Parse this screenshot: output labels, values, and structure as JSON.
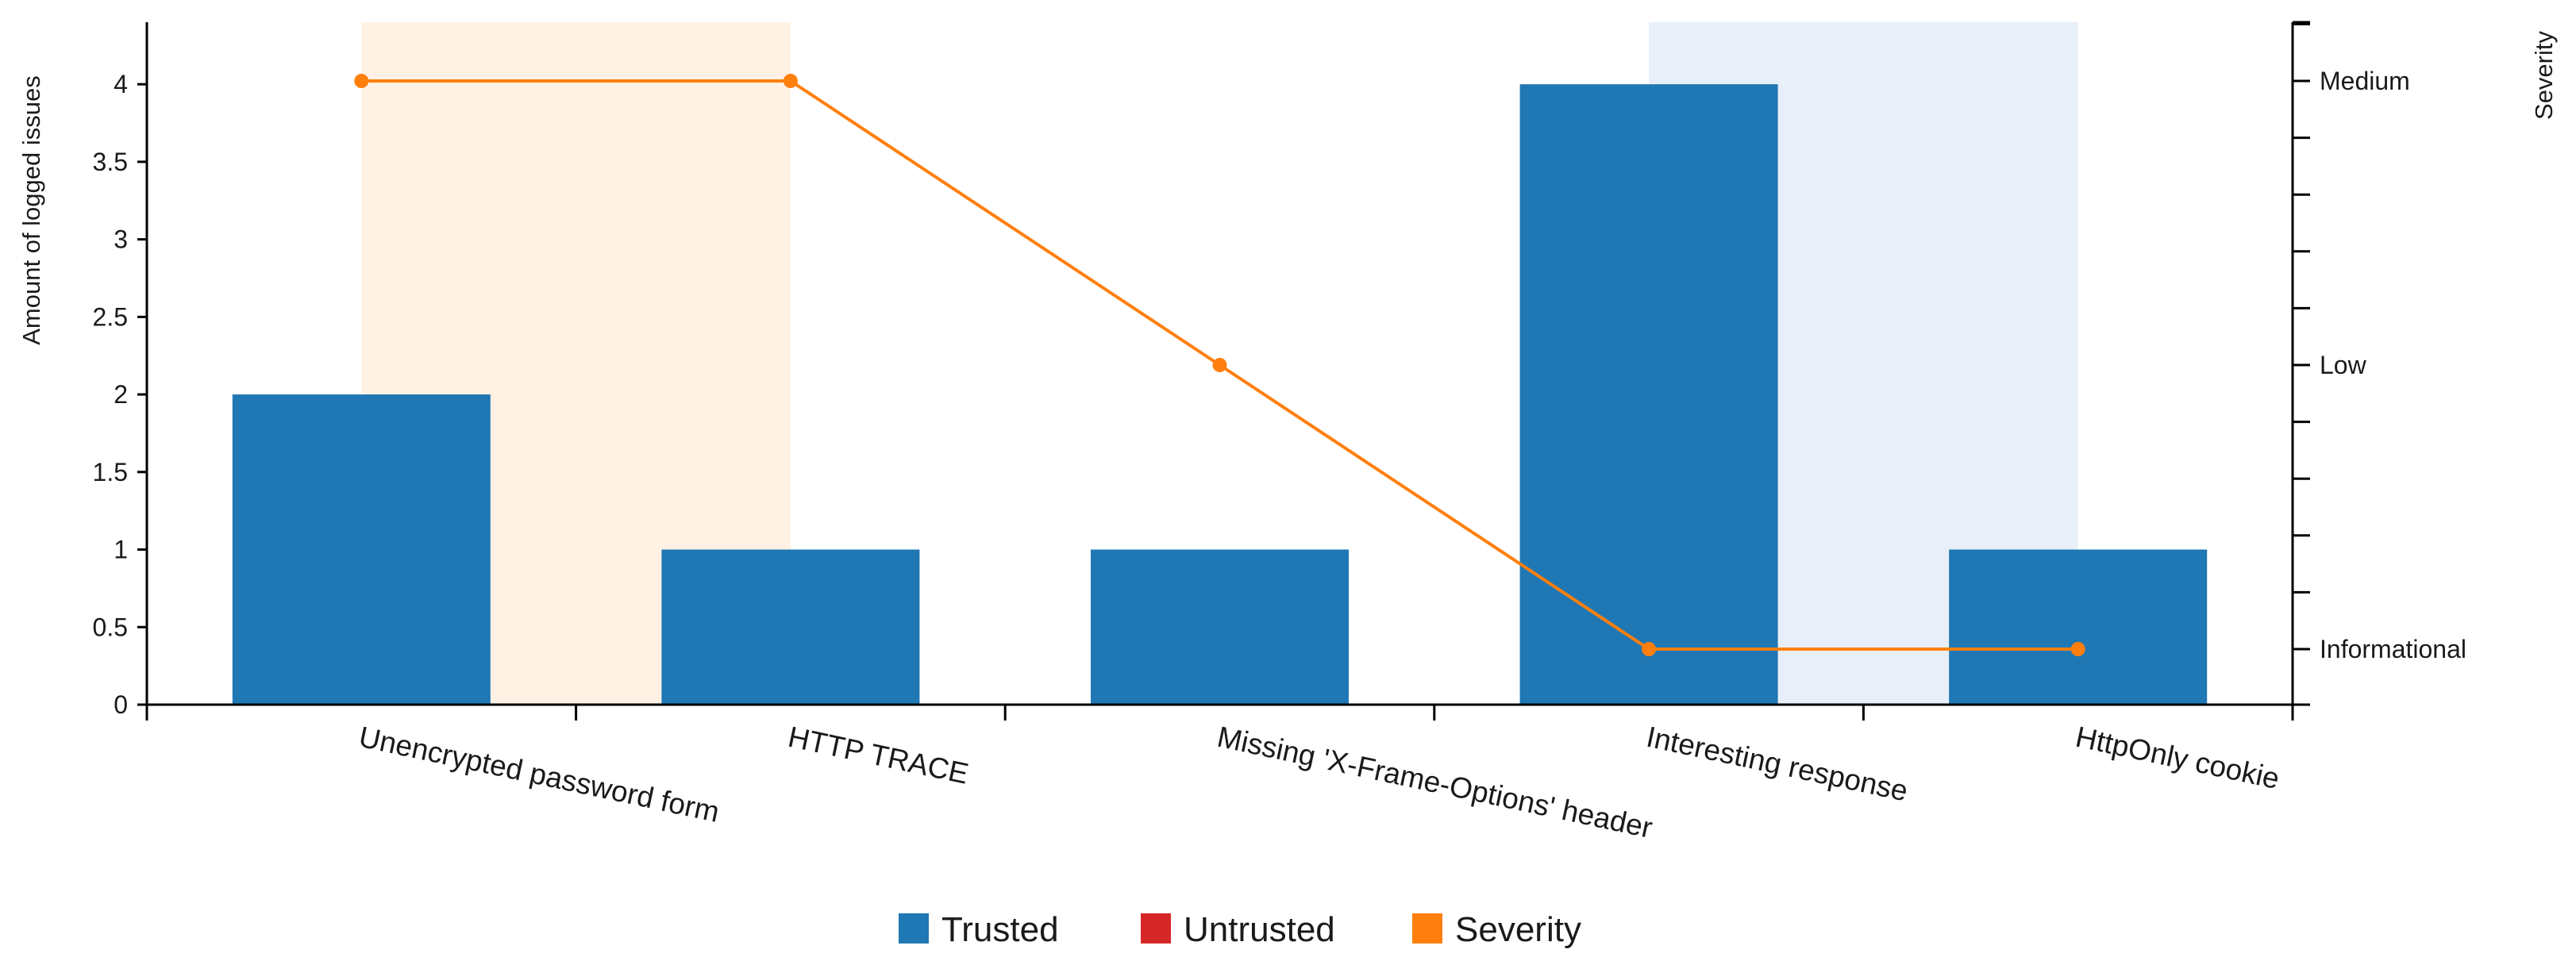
{
  "chart_data": {
    "type": "bar",
    "categories": [
      "Unencrypted password form",
      "HTTP TRACE",
      "Missing 'X-Frame-Options' header",
      "Interesting response",
      "HttpOnly cookie"
    ],
    "series": [
      {
        "name": "Trusted",
        "type": "bar",
        "axis": "left",
        "values": [
          2,
          1,
          1,
          4,
          1
        ],
        "color": "#1f77b4"
      },
      {
        "name": "Untrusted",
        "type": "bar",
        "axis": "left",
        "values": [
          0,
          0,
          0,
          0,
          0
        ],
        "color": "#d62728"
      },
      {
        "name": "Severity",
        "type": "line",
        "axis": "right",
        "values": [
          "Medium",
          "Medium",
          "Low",
          "Informational",
          "Informational"
        ],
        "color": "#ff7f0e"
      }
    ],
    "ylabel": "Amount of logged issues",
    "ylim": [
      0,
      4.4
    ],
    "yticks": [
      "0",
      "0.5",
      "1",
      "1.5",
      "2",
      "2.5",
      "3",
      "3.5",
      "4"
    ],
    "y2label": "Severity",
    "y2ticks": [
      "Informational",
      "Low",
      "Medium"
    ],
    "highlight_regions": [
      {
        "from_category": 0,
        "to_category": 1,
        "color": "#fff2e5"
      },
      {
        "from_category": 3,
        "to_category": 4,
        "color": "#e8eff8"
      }
    ],
    "grid": false,
    "legend": {
      "position": "bottom",
      "entries": [
        "Trusted",
        "Untrusted",
        "Severity"
      ]
    }
  }
}
